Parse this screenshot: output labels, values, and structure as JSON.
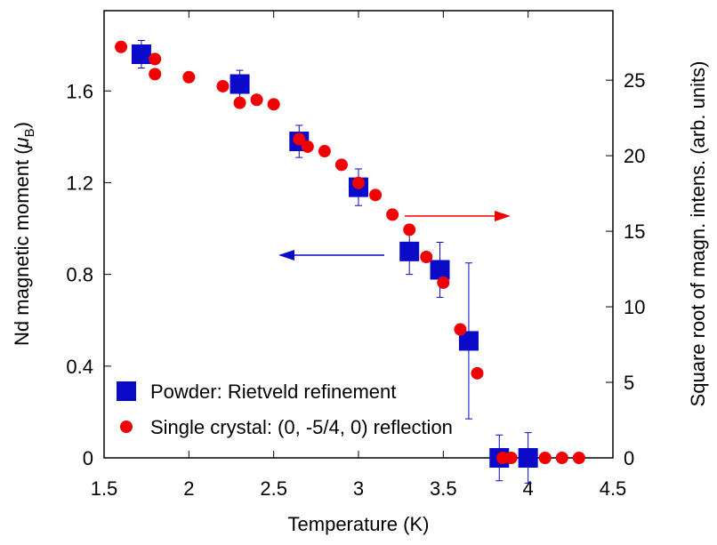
{
  "chart_data": {
    "type": "scatter",
    "x_label": "Temperature (K)",
    "y_label": [
      "Nd magnetic moment (",
      "μ",
      "B",
      ")"
    ],
    "y2_label": "Square root of magn. intens. (arb. units)",
    "xlim": [
      1.5,
      4.5
    ],
    "xticks": [
      1.5,
      2,
      2.5,
      3,
      3.5,
      4,
      4.5
    ],
    "ylim": [
      0,
      1.95
    ],
    "yticks": [
      0,
      0.4,
      0.8,
      1.2,
      1.6
    ],
    "y2lim": [
      0,
      29.6
    ],
    "y2ticks": [
      0,
      5,
      10,
      15,
      20,
      25
    ],
    "legend": "lower left",
    "series": [
      {
        "name": "Powder: Rietveld refinement",
        "color": "#0a0ac8",
        "marker": "square",
        "x": [
          1.72,
          2.3,
          2.65,
          3.0,
          3.3,
          3.48,
          3.65,
          3.83,
          4.0
        ],
        "values": [
          1.76,
          1.63,
          1.38,
          1.18,
          0.9,
          0.82,
          0.51,
          0,
          0
        ],
        "errors": [
          0.06,
          0.06,
          0.07,
          0.08,
          0.1,
          0.12,
          0.34,
          0.1,
          0.11
        ]
      },
      {
        "name": "Single crystal: (0, -5/4, 0) reflection",
        "color": "#f00000",
        "marker": "circle",
        "axis": "y2",
        "x": [
          1.6,
          1.8,
          1.8,
          2.0,
          2.2,
          2.3,
          2.4,
          2.5,
          2.65,
          2.7,
          2.8,
          2.9,
          3.0,
          3.1,
          3.2,
          3.3,
          3.4,
          3.5,
          3.6,
          3.7,
          3.85,
          3.9,
          4.1,
          4.2,
          4.3
        ],
        "values": [
          27.2,
          26.4,
          25.4,
          25.2,
          24.6,
          23.5,
          23.7,
          23.4,
          21.1,
          20.6,
          20.3,
          19.4,
          18.2,
          17.4,
          16.1,
          15.1,
          13.3,
          11.6,
          8.5,
          5.6,
          0,
          0,
          0,
          0,
          0
        ]
      }
    ]
  }
}
